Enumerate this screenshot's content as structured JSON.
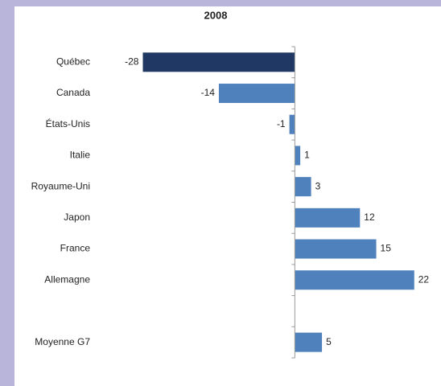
{
  "chart_data": {
    "type": "bar",
    "orientation": "horizontal",
    "title": "2008",
    "categories": [
      "Québec",
      "Canada",
      "États-Unis",
      "Italie",
      "Royaume-Uni",
      "Japon",
      "France",
      "Allemagne",
      null,
      "Moyenne G7"
    ],
    "values": [
      -28,
      -14,
      -1,
      1,
      3,
      12,
      15,
      22,
      null,
      5
    ],
    "colors": [
      "#1f3864",
      "#4f81bd",
      "#4f81bd",
      "#4f81bd",
      "#4f81bd",
      "#4f81bd",
      "#4f81bd",
      "#4f81bd",
      "#4f81bd",
      "#4f81bd"
    ],
    "xlim": [
      -30,
      25
    ],
    "grid": false
  }
}
